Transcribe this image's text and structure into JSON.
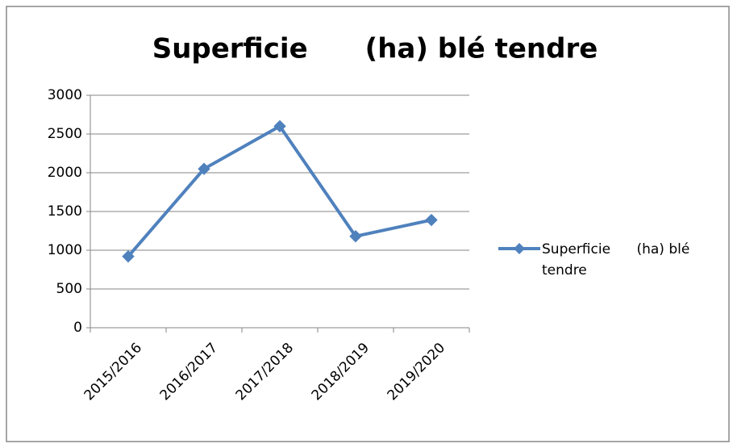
{
  "chart_data": {
    "type": "line",
    "title": "Superficie      (ha) blé tendre",
    "categories": [
      "2015/2016",
      "2016/2017",
      "2017/2018",
      "2018/2019",
      "2019/2020"
    ],
    "series": [
      {
        "name": "Superficie      (ha) blé tendre",
        "color": "#4f81bd",
        "values": [
          920,
          2050,
          2600,
          1180,
          1390
        ]
      }
    ],
    "ylim": [
      0,
      3000
    ],
    "yticks": [
      0,
      500,
      1000,
      1500,
      2000,
      2500,
      3000
    ],
    "grid": true,
    "legend": "right"
  }
}
